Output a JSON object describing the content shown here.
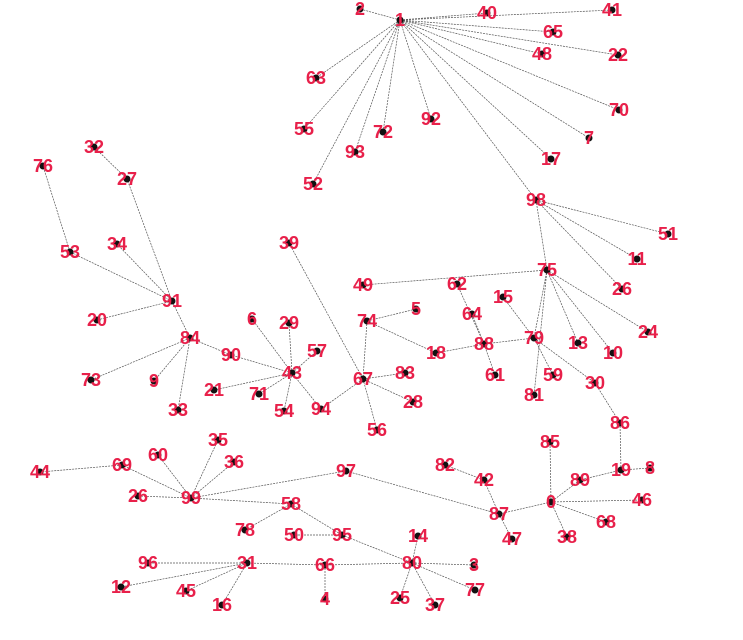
{
  "colors": {
    "label": "#e8204a",
    "node": "#111111",
    "edge": "#555555"
  },
  "nodes": [
    "1",
    "2",
    "40",
    "41",
    "65",
    "48",
    "22",
    "63",
    "70",
    "7",
    "55",
    "72",
    "92",
    "93",
    "17",
    "52",
    "98",
    "51",
    "11",
    "26",
    "24",
    "76",
    "32",
    "27",
    "53",
    "34",
    "39",
    "75",
    "49",
    "62",
    "15",
    "64",
    "5",
    "74",
    "6",
    "29",
    "91",
    "20",
    "84",
    "90",
    "57",
    "43",
    "73",
    "9",
    "21",
    "71",
    "54",
    "94",
    "67",
    "83",
    "28",
    "56",
    "33",
    "18",
    "88",
    "61",
    "79",
    "13",
    "10",
    "59",
    "30",
    "81",
    "86",
    "85",
    "19",
    "8",
    "46",
    "89",
    "0",
    "68",
    "38",
    "87",
    "47",
    "82",
    "42",
    "44",
    "69",
    "60",
    "35",
    "36",
    "97",
    "26_",
    "99",
    "58",
    "78",
    "50",
    "95",
    "14",
    "96",
    "31",
    "66",
    "80",
    "3",
    "12",
    "45",
    "16",
    "4",
    "25",
    "37",
    "77"
  ],
  "edges": []
}
